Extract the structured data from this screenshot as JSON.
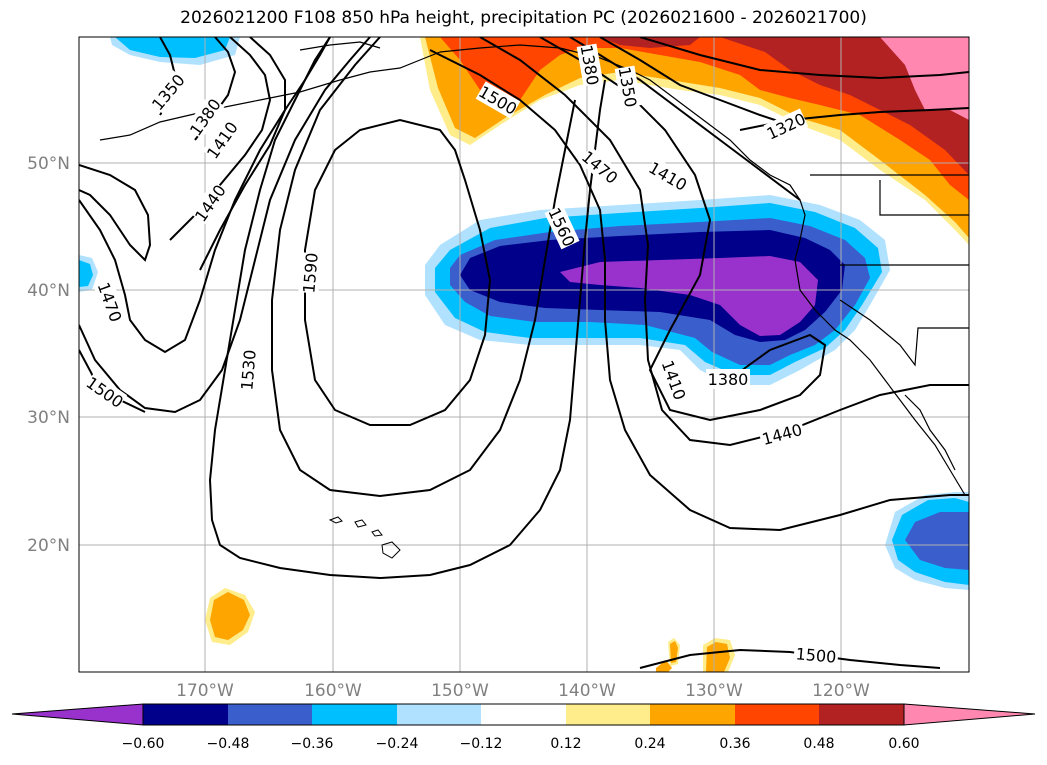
{
  "title": "2026021200 F108 850 hPa height, precipitation PC (2026021600 - 2026021700)",
  "map": {
    "lat_labels": [
      "50°N",
      "40°N",
      "30°N",
      "20°N"
    ],
    "lon_labels": [
      "170°W",
      "160°W",
      "150°W",
      "140°W",
      "130°W",
      "120°W"
    ],
    "contour_labels": [
      "1350",
      "1380",
      "1410",
      "1440",
      "1470",
      "1500",
      "1530",
      "1560",
      "1590",
      "1500",
      "1380",
      "1350",
      "1470",
      "1410",
      "1320",
      "1410",
      "1380",
      "1440",
      "1500"
    ]
  },
  "colorbar": {
    "ticks": [
      "−0.60",
      "−0.48",
      "−0.36",
      "−0.24",
      "−0.12",
      "0.12",
      "0.24",
      "0.36",
      "0.48",
      "0.60"
    ],
    "colors": [
      "#9932cc",
      "#00008b",
      "#3a5fcd",
      "#00bfff",
      "#b0e2ff",
      "#ffffff",
      "#ffec8b",
      "#ffa500",
      "#ff4500",
      "#b22222",
      "#ff87b0"
    ]
  }
}
